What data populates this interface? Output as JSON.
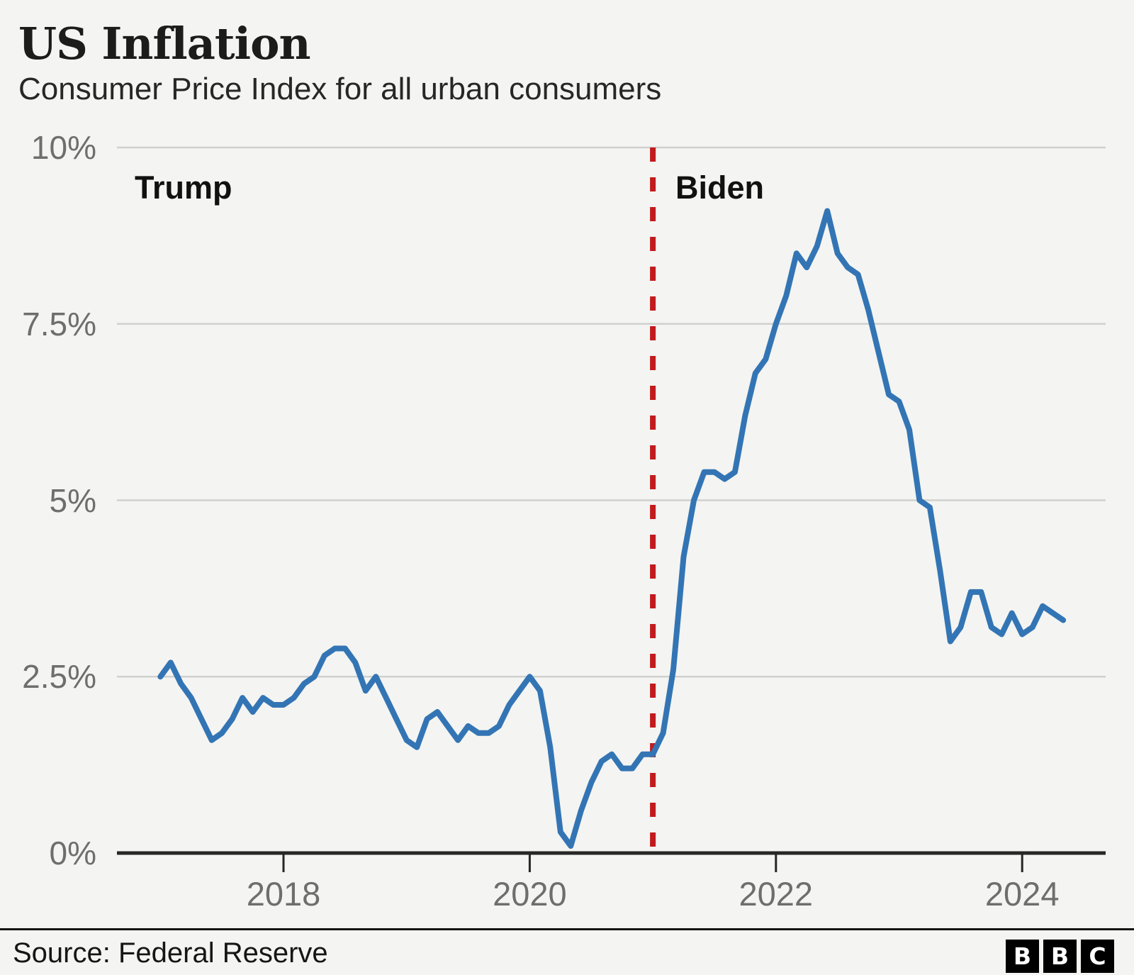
{
  "header": {
    "title": "US Inflation",
    "subtitle": "Consumer Price Index for all urban consumers"
  },
  "footer": {
    "source": "Source: Federal Reserve",
    "logo_letters": [
      "B",
      "B",
      "C"
    ]
  },
  "colors": {
    "background": "#f4f4f2",
    "line_blue": "#3375b4",
    "divider_red": "#c11b1e",
    "grid_gray": "#d0d0ce",
    "axis_dark": "#262626",
    "tick_label_gray": "#6e6e6e",
    "text_dark": "#1c1c1a",
    "logo_bg": "#000000",
    "logo_letter": "#ffffff"
  },
  "chart_data": {
    "type": "line",
    "title": "US Inflation",
    "subtitle": "Consumer Price Index for all urban consumers",
    "unit": "percent year-over-year",
    "x_start": "2017-01",
    "x_end": "2024-05",
    "n_points": 89,
    "ylim": [
      0,
      10
    ],
    "grid": true,
    "y_ticks": [
      {
        "label": "0%",
        "value": 0
      },
      {
        "label": "2.5%",
        "value": 2.5
      },
      {
        "label": "5%",
        "value": 5
      },
      {
        "label": "7.5%",
        "value": 7.5
      },
      {
        "label": "10%",
        "value": 10
      }
    ],
    "x_ticks": [
      {
        "label": "2018",
        "month_index": 12
      },
      {
        "label": "2020",
        "month_index": 36
      },
      {
        "label": "2022",
        "month_index": 60
      },
      {
        "label": "2024",
        "month_index": 84
      }
    ],
    "annotation_line": {
      "label_left": "Trump",
      "label_right": "Biden",
      "month": "2021-01",
      "month_index": 48,
      "style": "dashed"
    },
    "series": [
      {
        "name": "CPI, all urban consumers (YoY %)",
        "values": [
          2.5,
          2.7,
          2.4,
          2.2,
          1.9,
          1.6,
          1.7,
          1.9,
          2.2,
          2.0,
          2.2,
          2.1,
          2.1,
          2.2,
          2.4,
          2.5,
          2.8,
          2.9,
          2.9,
          2.7,
          2.3,
          2.5,
          2.2,
          1.9,
          1.6,
          1.5,
          1.9,
          2.0,
          1.8,
          1.6,
          1.8,
          1.7,
          1.7,
          1.8,
          2.1,
          2.3,
          2.5,
          2.3,
          1.5,
          0.3,
          0.1,
          0.6,
          1.0,
          1.3,
          1.4,
          1.2,
          1.2,
          1.4,
          1.4,
          1.7,
          2.6,
          4.2,
          5.0,
          5.4,
          5.4,
          5.3,
          5.4,
          6.2,
          6.8,
          7.0,
          7.5,
          7.9,
          8.5,
          8.3,
          8.6,
          9.1,
          8.5,
          8.3,
          8.2,
          7.7,
          7.1,
          6.5,
          6.4,
          6.0,
          5.0,
          4.9,
          4.0,
          3.0,
          3.2,
          3.7,
          3.7,
          3.2,
          3.1,
          3.4,
          3.1,
          3.2,
          3.5,
          3.4,
          3.3
        ]
      }
    ]
  }
}
